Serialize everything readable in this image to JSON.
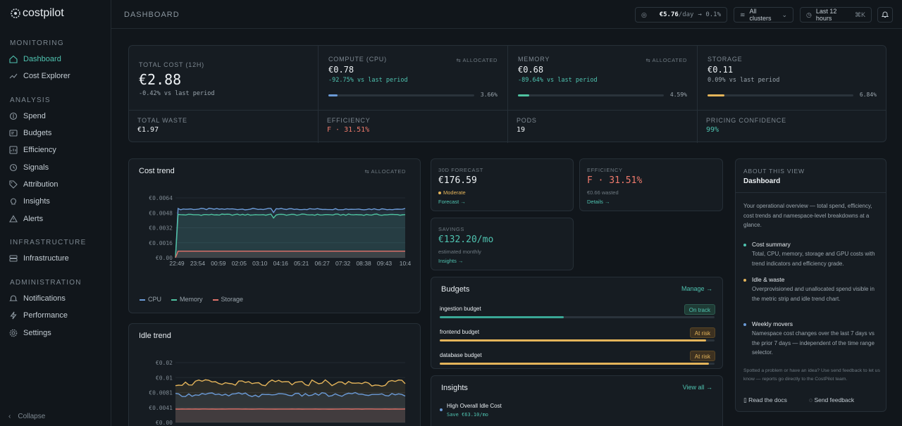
{
  "app": {
    "name": "costpilot",
    "collapse_label": "Collapse"
  },
  "sidebar": {
    "sections": [
      {
        "title": "MONITORING",
        "items": [
          {
            "label": "Dashboard",
            "icon": "home-icon",
            "active": true
          },
          {
            "label": "Cost Explorer",
            "icon": "trend-icon"
          }
        ]
      },
      {
        "title": "ANALYSIS",
        "items": [
          {
            "label": "Spend",
            "icon": "spend-icon"
          },
          {
            "label": "Budgets",
            "icon": "budget-icon"
          },
          {
            "label": "Efficiency",
            "icon": "efficiency-icon"
          },
          {
            "label": "Signals",
            "icon": "signal-icon"
          },
          {
            "label": "Attribution",
            "icon": "tag-icon"
          },
          {
            "label": "Insights",
            "icon": "lightbulb-icon"
          },
          {
            "label": "Alerts",
            "icon": "alert-icon"
          }
        ]
      },
      {
        "title": "INFRASTRUCTURE",
        "items": [
          {
            "label": "Infrastructure",
            "icon": "server-icon"
          }
        ]
      },
      {
        "title": "ADMINISTRATION",
        "items": [
          {
            "label": "Notifications",
            "icon": "bell-icon"
          },
          {
            "label": "Performance",
            "icon": "bolt-icon"
          },
          {
            "label": "Settings",
            "icon": "gear-icon"
          }
        ]
      }
    ]
  },
  "topbar": {
    "title": "DASHBOARD",
    "rate_value": "€5.76",
    "rate_unit": "/day",
    "rate_change": "→ 0.1%",
    "cluster": "All clusters",
    "range": "Last 12 hours",
    "shortcut": "⌘K"
  },
  "metrics": {
    "total": {
      "label": "TOTAL COST (12H)",
      "value": "€2.88",
      "change": "-0.42% vs last period"
    },
    "cpu": {
      "label": "COMPUTE (CPU)",
      "tag": "ALLOCATED",
      "value": "€0.78",
      "change": "-92.75% vs last period",
      "pct": "3.66%",
      "fraction": 0.0366
    },
    "memory": {
      "label": "MEMORY",
      "tag": "ALLOCATED",
      "value": "€0.68",
      "change": "-89.64% vs last period",
      "pct": "4.59%",
      "fraction": 0.0459
    },
    "storage": {
      "label": "STORAGE",
      "value": "€0.11",
      "change": "0.09% vs last period",
      "pct": "6.84%",
      "fraction": 0.0684
    }
  },
  "strip": {
    "waste": {
      "label": "TOTAL WASTE",
      "value": "€1.97"
    },
    "efficiency": {
      "label": "EFFICIENCY",
      "value": "F · 31.51%"
    },
    "pods": {
      "label": "PODS",
      "value": "19"
    },
    "confidence": {
      "label": "PRICING CONFIDENCE",
      "value": "99%"
    }
  },
  "cost_trend": {
    "title": "Cost trend",
    "tag": "ALLOCATED",
    "y_ticks": [
      "€0.0064",
      "€0.0048",
      "€0.0032",
      "€0.0016",
      "€0.00"
    ],
    "x_ticks": [
      "22:49",
      "23:54",
      "00:59",
      "02:05",
      "03:10",
      "04:16",
      "05:21",
      "06:27",
      "07:32",
      "08:38",
      "09:43",
      "10:4"
    ],
    "legend": [
      "CPU",
      "Memory",
      "Storage"
    ]
  },
  "idle_trend": {
    "title": "Idle trend",
    "y_ticks": [
      "€0.02",
      "€0.01",
      "€0.0081",
      "€0.0041",
      "€0.00"
    ]
  },
  "chart_data": [
    {
      "type": "line",
      "title": "Cost trend",
      "ylim": [
        0,
        0.0064
      ],
      "x": [
        "22:49",
        "23:54",
        "00:59",
        "02:05",
        "03:10",
        "04:16",
        "05:21",
        "06:27",
        "07:32",
        "08:38",
        "09:43",
        "10:4"
      ],
      "series": [
        {
          "name": "CPU",
          "color": "#6b9ad6",
          "values": [
            0,
            0.0052,
            0.0052,
            0.0052,
            0.0052,
            0.0052,
            0.0052,
            0.0052,
            0.0052,
            0.0052,
            0.0052,
            0.0052
          ]
        },
        {
          "name": "Memory",
          "color": "#4fc3a0",
          "values": [
            0,
            0.0046,
            0.0046,
            0.0046,
            0.0046,
            0.0046,
            0.0046,
            0.0046,
            0.0046,
            0.0046,
            0.0046,
            0.0046
          ]
        },
        {
          "name": "Storage",
          "color": "#e0736a",
          "values": [
            0,
            0.0007,
            0.0007,
            0.0007,
            0.0007,
            0.0007,
            0.0007,
            0.0007,
            0.0007,
            0.0007,
            0.0007,
            0.0007
          ]
        }
      ]
    },
    {
      "type": "line",
      "title": "Idle trend",
      "ylim": [
        0,
        0.02
      ],
      "series": [
        {
          "name": "",
          "color": "#e4b45a",
          "values": [
            0.013,
            0.0135,
            0.013,
            0.0132,
            0.0128,
            0.0134,
            0.013,
            0.0136,
            0.013,
            0.0133,
            0.0129,
            0.0134,
            0.013
          ]
        },
        {
          "name": "",
          "color": "#6b9ad6",
          "values": [
            0.0092,
            0.0095,
            0.0091,
            0.0094,
            0.009,
            0.0095,
            0.0092,
            0.0094,
            0.0091,
            0.0095,
            0.0092,
            0.0093,
            0.0091
          ]
        },
        {
          "name": "",
          "color": "#e0736a",
          "values": [
            0.0045,
            0.0045,
            0.0045,
            0.0045,
            0.0045,
            0.0045,
            0.0045,
            0.0045,
            0.0045,
            0.0045,
            0.0045,
            0.0045,
            0.0045
          ]
        }
      ]
    }
  ],
  "forecast": {
    "label": "30D FORECAST",
    "value": "€176.59",
    "status": "Moderate",
    "link": "Forecast →"
  },
  "efficiency_card": {
    "label": "EFFICIENCY",
    "value": "F · 31.51%",
    "sub": "€0.66 wasted",
    "link": "Details →"
  },
  "savings": {
    "label": "SAVINGS",
    "value": "€132.20/mo",
    "sub": "estimated monthly",
    "link": "Insights →"
  },
  "budgets": {
    "title": "Budgets",
    "link": "Manage →",
    "items": [
      {
        "name": "ingestion budget",
        "status": "On track",
        "fraction": 0.45,
        "color": "#3aa796"
      },
      {
        "name": "frontend budget",
        "status": "At risk",
        "fraction": 0.97,
        "color": "#e4b45a"
      },
      {
        "name": "database budget",
        "status": "At risk",
        "fraction": 0.98,
        "color": "#e4b45a"
      }
    ]
  },
  "insights": {
    "title": "Insights",
    "link": "View all →",
    "items": [
      {
        "title": "High Overall Idle Cost",
        "save": "Save €63.10/mo"
      }
    ]
  },
  "about": {
    "label": "ABOUT THIS VIEW",
    "title": "Dashboard",
    "intro": "Your operational overview — total spend, efficiency, cost trends and namespace-level breakdowns at a glance.",
    "points": [
      {
        "title": "Cost summary",
        "text": "Total, CPU, memory, storage and GPU costs with trend indicators and efficiency grade.",
        "color": "#4fc3b0"
      },
      {
        "title": "Idle & waste",
        "text": "Overprovisioned and unallocated spend visible in the metric strip and idle trend chart.",
        "color": "#e4b45a"
      },
      {
        "title": "Weekly movers",
        "text": "Namespace cost changes over the last 7 days vs the prior 7 days — independent of the time range selector.",
        "color": "#6b9ad6"
      }
    ],
    "footer": "Spotted a problem or have an idea? Use send feedback to let us know — reports go directly to the CostPilot team.",
    "docs": "Read the docs",
    "feedback": "Send feedback"
  }
}
